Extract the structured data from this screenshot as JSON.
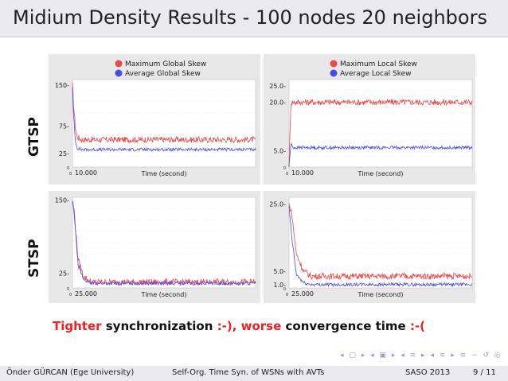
{
  "title": "Midium Density Results - 100 nodes 20 neighbors",
  "rows": {
    "top": "GTSP",
    "bottom": "STSP"
  },
  "caption": {
    "part1": "Tighter",
    "part2": " synchronization ",
    "part3": ":-), ",
    "part4": "worse",
    "part5": " convergence time ",
    "part6": ":-("
  },
  "footer": {
    "author": "Önder GÜRCAN  (Ege University)",
    "talk": "Self-Org. Time Syn. of WSNs with AVTs",
    "venue": "SASO 2013",
    "page": "9 / 11"
  },
  "colors": {
    "max_series": "#e84a4a",
    "avg_series": "#4a4ae8",
    "caption_red": "#e22222"
  },
  "chart_data": [
    {
      "type": "line",
      "xlabel": "Time (second)",
      "x_ticks": [
        "0",
        "10.000"
      ],
      "y_ticks": [
        "150",
        "75",
        "25",
        "0"
      ],
      "ylim": [
        0,
        160
      ],
      "legend": "top",
      "series": [
        {
          "name": "Maximum Global Skew",
          "color": "#e84a4a",
          "points": [
            [
              0,
              150
            ],
            [
              200,
              120
            ],
            [
              600,
              75
            ],
            [
              1000,
              55
            ],
            [
              2000,
              50
            ],
            [
              40000,
              50
            ]
          ]
        },
        {
          "name": "Average Global Skew",
          "color": "#4a4ae8",
          "points": [
            [
              0,
              148
            ],
            [
              200,
              100
            ],
            [
              600,
              50
            ],
            [
              1000,
              35
            ],
            [
              2000,
              32
            ],
            [
              40000,
              32
            ]
          ]
        }
      ]
    },
    {
      "type": "line",
      "xlabel": "Time (second)",
      "x_ticks": [
        "0",
        "10.000"
      ],
      "y_ticks": [
        "25.0",
        "20.0",
        "5.0",
        "0"
      ],
      "ylim": [
        0,
        27
      ],
      "legend": "top",
      "series": [
        {
          "name": "Maximum Local Skew",
          "color": "#e84a4a",
          "points": [
            [
              0,
              0
            ],
            [
              400,
              20
            ],
            [
              40000,
              20
            ]
          ]
        },
        {
          "name": "Average Local Skew",
          "color": "#4a4ae8",
          "points": [
            [
              0,
              0
            ],
            [
              400,
              7
            ],
            [
              1000,
              6
            ],
            [
              40000,
              6
            ]
          ]
        }
      ]
    },
    {
      "type": "line",
      "xlabel": "Time (second)",
      "x_ticks": [
        "0",
        "25.000"
      ],
      "y_ticks": [
        "150",
        "25",
        "0"
      ],
      "ylim": [
        0,
        155
      ],
      "series": [
        {
          "color": "#e84a4a",
          "points": [
            [
              0,
              150
            ],
            [
              1000,
              130
            ],
            [
              3000,
              50
            ],
            [
              6000,
              20
            ],
            [
              10000,
              10
            ],
            [
              100000,
              10
            ]
          ]
        },
        {
          "color": "#4a4ae8",
          "points": [
            [
              0,
              148
            ],
            [
              1000,
              125
            ],
            [
              3000,
              40
            ],
            [
              6000,
              15
            ],
            [
              10000,
              8
            ],
            [
              100000,
              8
            ]
          ]
        }
      ]
    },
    {
      "type": "line",
      "xlabel": "Time (second)",
      "x_ticks": [
        "0",
        "25.000"
      ],
      "y_ticks": [
        "25.0",
        "5.0",
        "1.0",
        "0"
      ],
      "ylim": [
        0,
        27
      ],
      "series": [
        {
          "color": "#e84a4a",
          "points": [
            [
              0,
              25
            ],
            [
              1500,
              22
            ],
            [
              4000,
              10
            ],
            [
              8000,
              5
            ],
            [
              12000,
              3.5
            ],
            [
              100000,
              3.5
            ]
          ]
        },
        {
          "color": "#4a4ae8",
          "points": [
            [
              0,
              24
            ],
            [
              1500,
              15
            ],
            [
              4000,
              4
            ],
            [
              8000,
              1.5
            ],
            [
              12000,
              1
            ],
            [
              100000,
              1
            ]
          ]
        }
      ]
    }
  ]
}
